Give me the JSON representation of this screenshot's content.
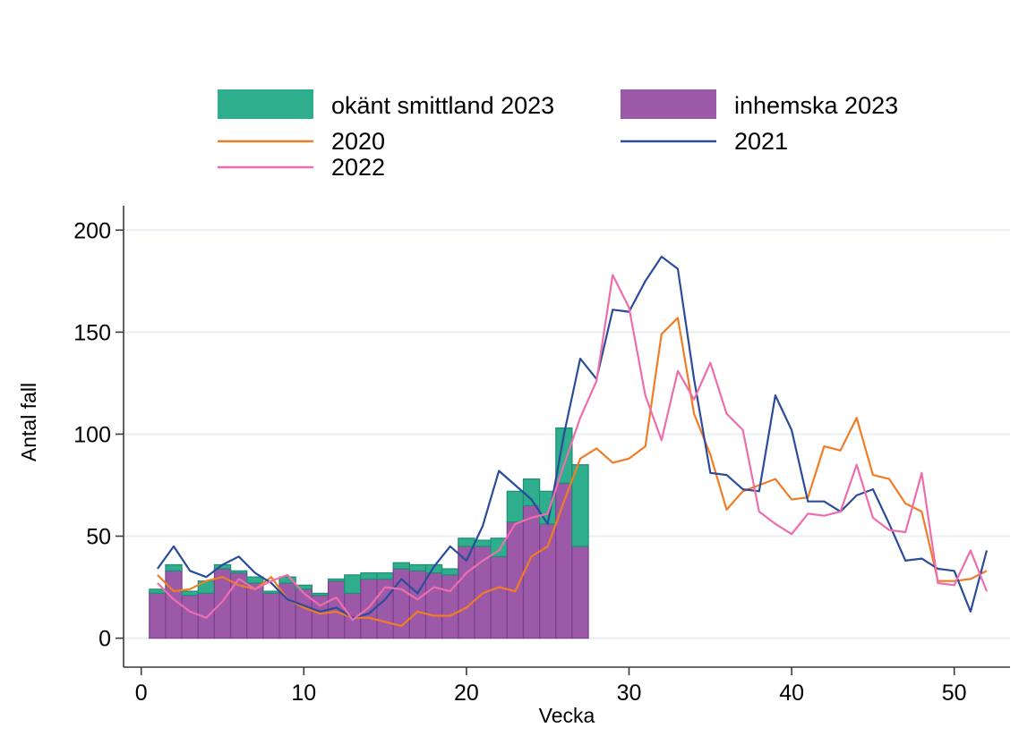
{
  "axes": {
    "x_label": "Vecka",
    "y_label": "Antal fall",
    "x_ticks": [
      0,
      10,
      20,
      30,
      40,
      50
    ],
    "y_ticks": [
      0,
      50,
      100,
      150,
      200
    ]
  },
  "legend": {
    "items": [
      {
        "label": "okänt smittland 2023",
        "type": "fill",
        "color": "#2fae8e"
      },
      {
        "label": "inhemska 2023",
        "type": "fill",
        "color": "#9c59a8"
      },
      {
        "label": "2020",
        "type": "line",
        "color": "#f07d26"
      },
      {
        "label": "2021",
        "type": "line",
        "color": "#2b4c9b"
      },
      {
        "label": "2022",
        "type": "line",
        "color": "#ee6ead"
      }
    ]
  },
  "chart_data": {
    "type": "combo-stacked-bar-and-line",
    "title": "",
    "xlabel": "Vecka",
    "ylabel": "Antal fall",
    "xlim": [
      -1,
      53
    ],
    "ylim": [
      0,
      200
    ],
    "grid": "horizontal",
    "legend_position": "top",
    "bar_weeks_range": [
      1,
      27
    ],
    "line_weeks_range": [
      1,
      52
    ],
    "bar_series": [
      {
        "name": "inhemska 2023",
        "stack_order": 1,
        "color": "#9c59a8",
        "stroke": "#7b3f8f",
        "values": [
          22,
          33,
          21,
          22,
          34,
          32,
          27,
          22,
          27,
          24,
          21,
          28,
          22,
          29,
          29,
          34,
          33,
          32,
          31,
          45,
          45,
          40,
          57,
          65,
          56,
          76,
          45
        ]
      },
      {
        "name": "okänt smittland 2023",
        "stack_order": 2,
        "color": "#2fae8e",
        "stroke": "#1e8e74",
        "values": [
          2,
          3,
          2,
          6,
          2,
          1,
          3,
          1,
          3,
          2,
          1,
          1,
          9,
          3,
          3,
          3,
          3,
          4,
          3,
          4,
          3,
          9,
          15,
          13,
          16,
          27,
          40
        ]
      }
    ],
    "line_series": [
      {
        "name": "2020",
        "color": "#f07d26",
        "values": [
          31,
          23,
          24,
          28,
          30,
          26,
          24,
          30,
          19,
          15,
          12,
          13,
          10,
          10,
          8,
          6,
          13,
          11,
          11,
          15,
          22,
          25,
          23,
          40,
          45,
          67,
          88,
          93,
          86,
          88,
          94,
          149,
          157,
          110,
          90,
          63,
          72,
          75,
          78,
          68,
          69,
          94,
          92,
          108,
          80,
          78,
          66,
          62,
          28,
          28,
          29,
          33
        ]
      },
      {
        "name": "2021",
        "color": "#2b4c9b",
        "values": [
          34,
          45,
          33,
          30,
          36,
          40,
          32,
          27,
          19,
          16,
          13,
          15,
          10,
          12,
          19,
          29,
          22,
          35,
          45,
          38,
          55,
          82,
          75,
          68,
          56,
          100,
          137,
          127,
          161,
          160,
          175,
          187,
          181,
          127,
          81,
          80,
          73,
          72,
          119,
          102,
          67,
          67,
          62,
          70,
          73,
          56,
          38,
          39,
          34,
          33,
          13,
          43
        ]
      },
      {
        "name": "2022",
        "color": "#ee6ead",
        "values": [
          27,
          19,
          13,
          10,
          18,
          29,
          24,
          28,
          31,
          22,
          16,
          20,
          9,
          15,
          25,
          24,
          19,
          25,
          23,
          32,
          38,
          43,
          56,
          59,
          61,
          85,
          108,
          126,
          178,
          162,
          119,
          97,
          131,
          117,
          135,
          110,
          102,
          62,
          56,
          51,
          61,
          60,
          62,
          85,
          59,
          53,
          52,
          81,
          27,
          26,
          43,
          23
        ]
      }
    ],
    "style": {
      "gridline_color": "#e8eef3",
      "axis_color": "#3a3a3a",
      "background": "#ffffff"
    }
  }
}
